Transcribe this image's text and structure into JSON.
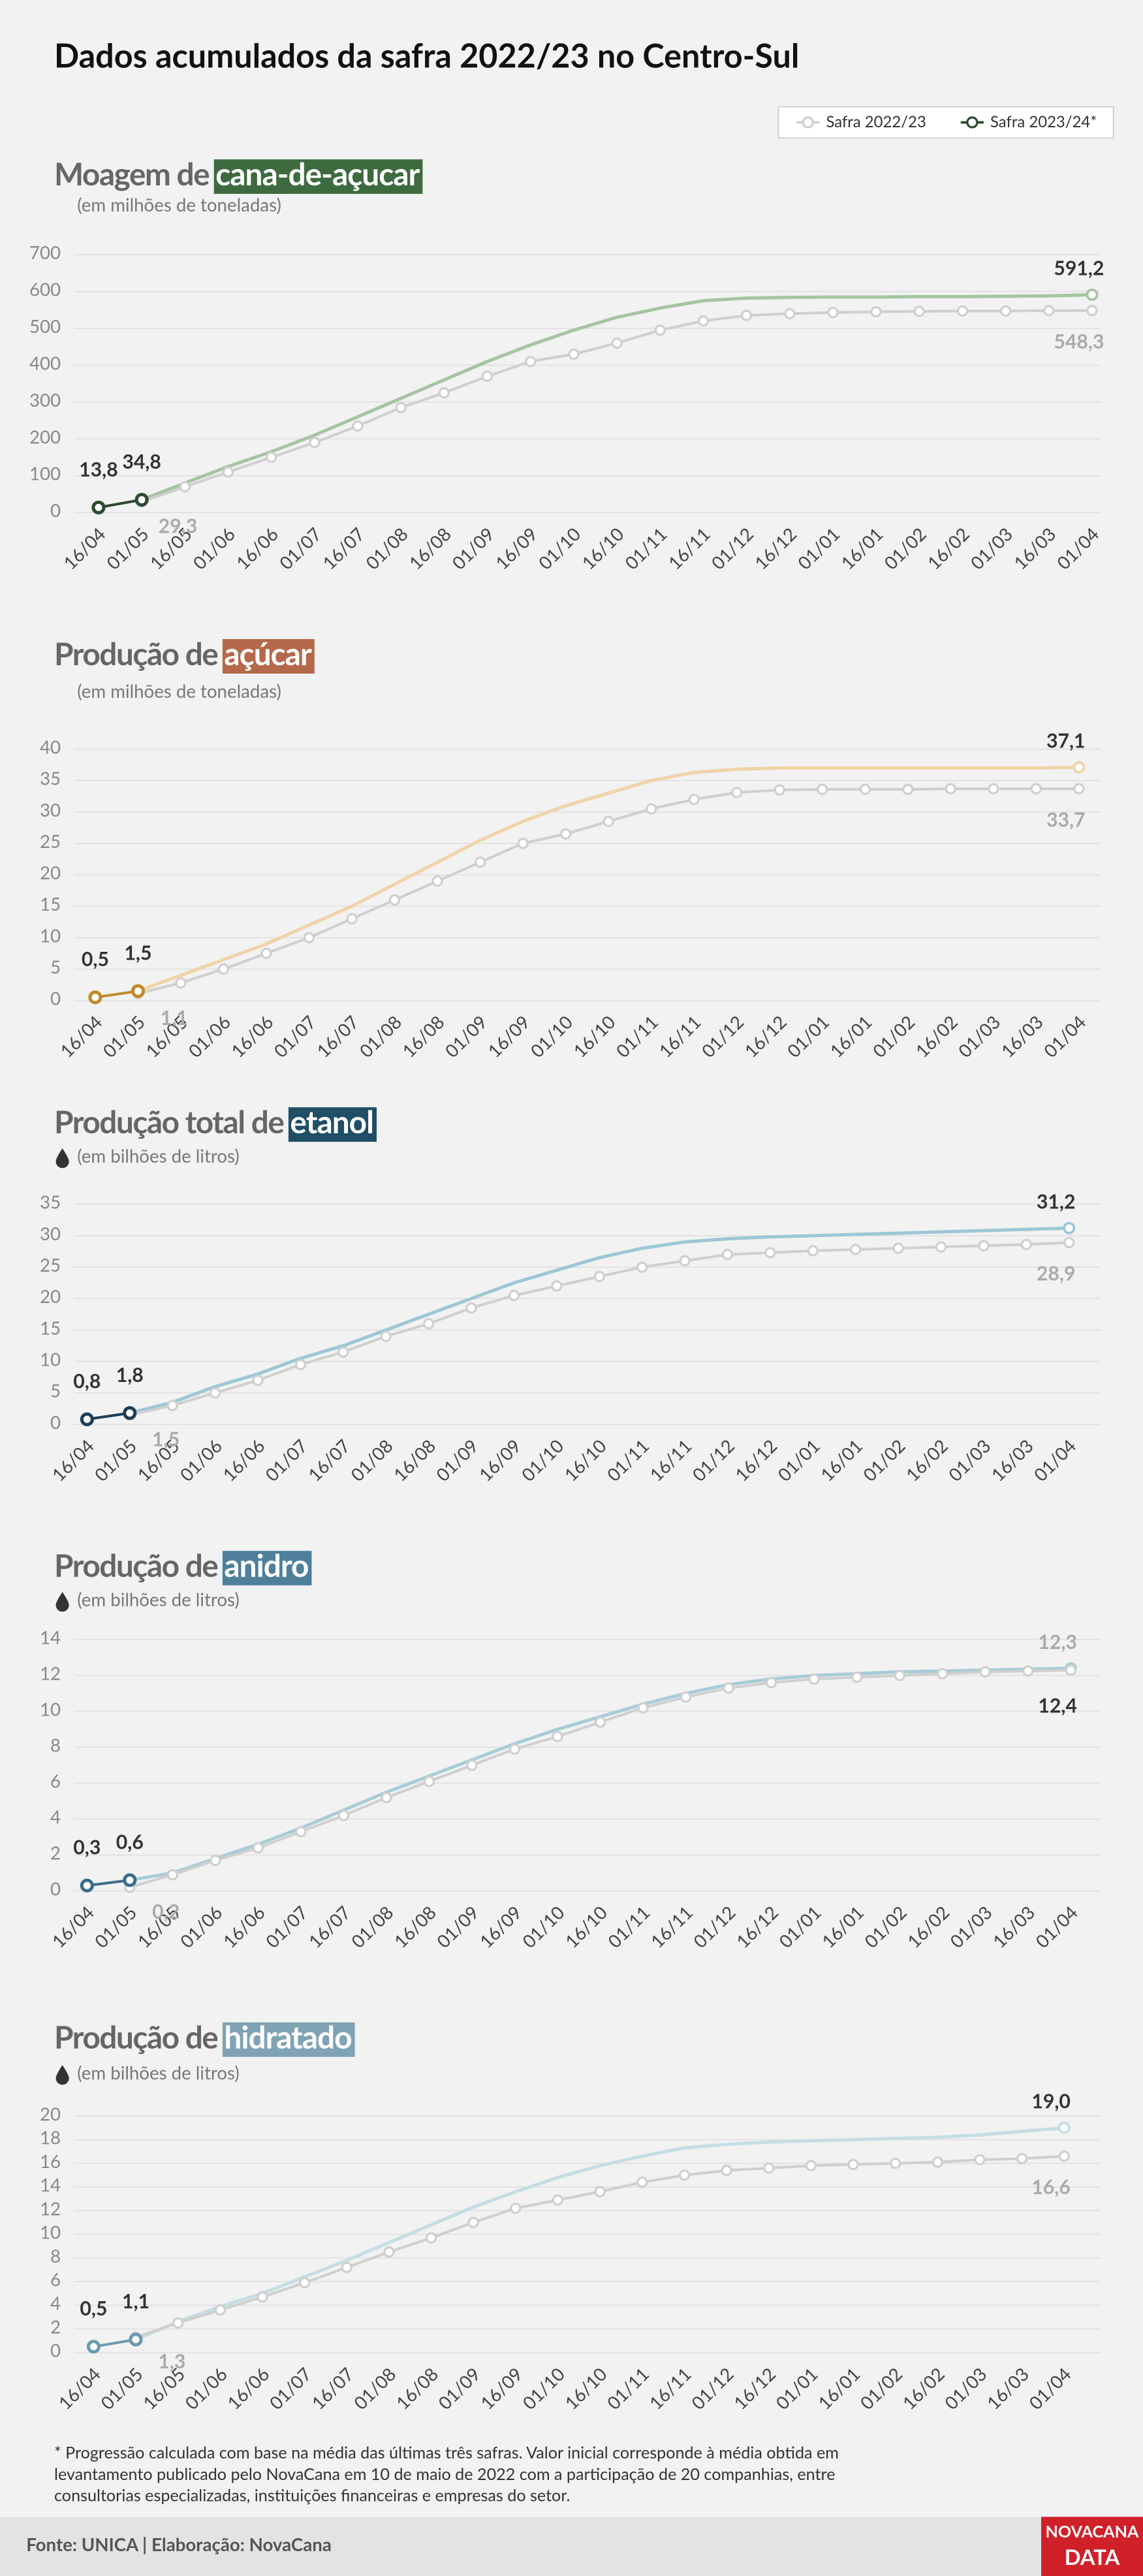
{
  "title": "Dados acumulados da safra 2022/23 no Centro-Sul",
  "legend": [
    {
      "name": "Safra 2022/23",
      "color": "#cfcfcf"
    },
    {
      "name": "Safra 2023/24*",
      "color": "#2e4a30"
    }
  ],
  "chart_data": [
    {
      "type": "line",
      "title": "Moagem de",
      "title_highlight": "cana-de-açucar",
      "highlight_color": "#3d6b3f",
      "subtitle": "(em milhões de toneladas)",
      "categories": [
        "16/04",
        "01/05",
        "16/05",
        "01/06",
        "16/06",
        "01/07",
        "16/07",
        "01/08",
        "16/08",
        "01/09",
        "16/09",
        "01/10",
        "16/10",
        "01/11",
        "16/11",
        "01/12",
        "16/12",
        "01/01",
        "16/01",
        "01/02",
        "16/02",
        "01/03",
        "16/03",
        "01/04"
      ],
      "ylim": [
        0,
        700
      ],
      "yticks": [
        0,
        100,
        200,
        300,
        400,
        500,
        600,
        700
      ],
      "series": [
        {
          "color": "#cfcfcf",
          "values": [
            null,
            29.3,
            70,
            110,
            150,
            190,
            235,
            285,
            325,
            370,
            410,
            430,
            460,
            495,
            520,
            535,
            540,
            543,
            545,
            546,
            547,
            547,
            548,
            548.3
          ],
          "value_labels": [
            null,
            "29,3",
            null,
            null,
            null,
            null,
            null,
            null,
            null,
            null,
            null,
            null,
            null,
            null,
            null,
            null,
            null,
            null,
            null,
            null,
            null,
            null,
            null,
            "548,3"
          ]
        },
        {
          "color": "#2e4a30",
          "values": [
            13.8,
            34.8,
            null,
            null,
            null,
            null,
            null,
            null,
            null,
            null,
            null,
            null,
            null,
            null,
            null,
            null,
            null,
            null,
            null,
            null,
            null,
            null,
            null,
            null
          ],
          "value_labels": [
            "13,8",
            "34,8",
            null,
            null,
            null,
            null,
            null,
            null,
            null,
            null,
            null,
            null,
            null,
            null,
            null,
            null,
            null,
            null,
            null,
            null,
            null,
            null,
            null,
            null
          ]
        },
        {
          "color": "#a6c4a2",
          "values": [
            null,
            34.8,
            80,
            125,
            165,
            210,
            260,
            310,
            360,
            410,
            455,
            495,
            530,
            555,
            575,
            582,
            584,
            585,
            585,
            586,
            586,
            587,
            588,
            591.2
          ],
          "value_labels": [
            null,
            null,
            null,
            null,
            null,
            null,
            null,
            null,
            null,
            null,
            null,
            null,
            null,
            null,
            null,
            null,
            null,
            null,
            null,
            null,
            null,
            null,
            null,
            "591,2"
          ]
        }
      ]
    },
    {
      "type": "line",
      "title": "Produção de",
      "title_highlight": "açúcar",
      "highlight_color": "#b5684a",
      "subtitle": "(em milhões de toneladas)",
      "categories": [
        "16/04",
        "01/05",
        "16/05",
        "01/06",
        "16/06",
        "01/07",
        "16/07",
        "01/08",
        "16/08",
        "01/09",
        "16/09",
        "01/10",
        "16/10",
        "01/11",
        "16/11",
        "01/12",
        "16/12",
        "01/01",
        "16/01",
        "01/02",
        "16/02",
        "01/03",
        "16/03",
        "01/04"
      ],
      "ylim": [
        0,
        40
      ],
      "yticks": [
        0,
        5,
        10,
        15,
        20,
        25,
        30,
        35,
        40
      ],
      "series": [
        {
          "color": "#cfcfcf",
          "values": [
            null,
            1.1,
            2.8,
            5,
            7.5,
            10,
            13,
            16,
            19,
            22,
            25,
            26.5,
            28.5,
            30.5,
            32,
            33.1,
            33.5,
            33.6,
            33.6,
            33.6,
            33.7,
            33.7,
            33.7,
            33.7
          ],
          "value_labels": [
            null,
            "1,1",
            null,
            null,
            null,
            null,
            null,
            null,
            null,
            null,
            null,
            null,
            null,
            null,
            null,
            null,
            null,
            null,
            null,
            null,
            null,
            null,
            null,
            "33,7"
          ]
        },
        {
          "color": "#c08a2a",
          "values": [
            0.5,
            1.5,
            null,
            null,
            null,
            null,
            null,
            null,
            null,
            null,
            null,
            null,
            null,
            null,
            null,
            null,
            null,
            null,
            null,
            null,
            null,
            null,
            null,
            null
          ],
          "value_labels": [
            "0,5",
            "1,5",
            null,
            null,
            null,
            null,
            null,
            null,
            null,
            null,
            null,
            null,
            null,
            null,
            null,
            null,
            null,
            null,
            null,
            null,
            null,
            null,
            null,
            null
          ]
        },
        {
          "color": "#f0d3a8",
          "values": [
            null,
            1.5,
            4,
            6.5,
            9,
            12,
            15,
            18.5,
            22,
            25.5,
            28.5,
            31,
            33,
            35,
            36.3,
            36.8,
            37,
            37,
            37,
            37,
            37,
            37,
            37,
            37.1
          ],
          "value_labels": [
            null,
            null,
            null,
            null,
            null,
            null,
            null,
            null,
            null,
            null,
            null,
            null,
            null,
            null,
            null,
            null,
            null,
            null,
            null,
            null,
            null,
            null,
            null,
            "37,1"
          ]
        }
      ]
    },
    {
      "type": "line",
      "title": "Produção total de",
      "title_highlight": "etanol",
      "highlight_color": "#1f4e66",
      "subtitle": "(em bilhões de litros)",
      "categories": [
        "16/04",
        "01/05",
        "16/05",
        "01/06",
        "16/06",
        "01/07",
        "16/07",
        "01/08",
        "16/08",
        "01/09",
        "16/09",
        "01/10",
        "16/10",
        "01/11",
        "16/11",
        "01/12",
        "16/12",
        "01/01",
        "16/01",
        "01/02",
        "16/02",
        "01/03",
        "16/03",
        "01/04"
      ],
      "ylim": [
        0,
        35
      ],
      "yticks": [
        0,
        5,
        10,
        15,
        20,
        25,
        30,
        35
      ],
      "series": [
        {
          "color": "#cfcfcf",
          "values": [
            null,
            1.5,
            3,
            5,
            7,
            9.5,
            11.5,
            14,
            16,
            18.5,
            20.5,
            22,
            23.5,
            25,
            26,
            27,
            27.3,
            27.6,
            27.8,
            28,
            28.2,
            28.4,
            28.6,
            28.9
          ],
          "value_labels": [
            null,
            "1,5",
            null,
            null,
            null,
            null,
            null,
            null,
            null,
            null,
            null,
            null,
            null,
            null,
            null,
            null,
            null,
            null,
            null,
            null,
            null,
            null,
            null,
            "28,9"
          ]
        },
        {
          "color": "#1e3d55",
          "values": [
            0.8,
            1.8,
            null,
            null,
            null,
            null,
            null,
            null,
            null,
            null,
            null,
            null,
            null,
            null,
            null,
            null,
            null,
            null,
            null,
            null,
            null,
            null,
            null,
            null
          ],
          "value_labels": [
            "0,8",
            "1,8",
            null,
            null,
            null,
            null,
            null,
            null,
            null,
            null,
            null,
            null,
            null,
            null,
            null,
            null,
            null,
            null,
            null,
            null,
            null,
            null,
            null,
            null
          ]
        },
        {
          "color": "#9cc7d6",
          "values": [
            null,
            1.8,
            3.5,
            6,
            8,
            10.5,
            12.5,
            15,
            17.5,
            20,
            22.5,
            24.5,
            26.5,
            28,
            29,
            29.5,
            29.8,
            30,
            30.2,
            30.4,
            30.6,
            30.8,
            31,
            31.2
          ],
          "value_labels": [
            null,
            null,
            null,
            null,
            null,
            null,
            null,
            null,
            null,
            null,
            null,
            null,
            null,
            null,
            null,
            null,
            null,
            null,
            null,
            null,
            null,
            null,
            null,
            "31,2"
          ]
        }
      ]
    },
    {
      "type": "line",
      "title": "Produção de",
      "title_highlight": "anidro",
      "highlight_color": "#4f7f9b",
      "subtitle": "(em bilhões de litros)",
      "categories": [
        "16/04",
        "01/05",
        "16/05",
        "01/06",
        "16/06",
        "01/07",
        "16/07",
        "01/08",
        "16/08",
        "01/09",
        "16/09",
        "01/10",
        "16/10",
        "01/11",
        "16/11",
        "01/12",
        "16/12",
        "01/01",
        "16/01",
        "01/02",
        "16/02",
        "01/03",
        "16/03",
        "01/04"
      ],
      "ylim": [
        0,
        14
      ],
      "yticks": [
        0,
        2,
        4,
        6,
        8,
        10,
        12,
        14
      ],
      "series": [
        {
          "color": "#cfcfcf",
          "values": [
            null,
            0.2,
            0.9,
            1.7,
            2.4,
            3.3,
            4.2,
            5.2,
            6.1,
            7.0,
            7.9,
            8.6,
            9.4,
            10.2,
            10.8,
            11.3,
            11.6,
            11.8,
            11.9,
            12.0,
            12.1,
            12.2,
            12.25,
            12.3
          ],
          "value_labels": [
            null,
            "0,2",
            null,
            null,
            null,
            null,
            null,
            null,
            null,
            null,
            null,
            null,
            null,
            null,
            null,
            null,
            null,
            null,
            null,
            null,
            null,
            null,
            null,
            "12,3"
          ]
        },
        {
          "color": "#3a6d8a",
          "values": [
            0.3,
            0.6,
            null,
            null,
            null,
            null,
            null,
            null,
            null,
            null,
            null,
            null,
            null,
            null,
            null,
            null,
            null,
            null,
            null,
            null,
            null,
            null,
            null,
            null
          ],
          "value_labels": [
            "0,3",
            "0,6",
            null,
            null,
            null,
            null,
            null,
            null,
            null,
            null,
            null,
            null,
            null,
            null,
            null,
            null,
            null,
            null,
            null,
            null,
            null,
            null,
            null,
            null
          ]
        },
        {
          "color": "#a8ccd8",
          "values": [
            null,
            0.6,
            1.0,
            1.8,
            2.6,
            3.5,
            4.5,
            5.5,
            6.4,
            7.3,
            8.2,
            9.0,
            9.7,
            10.4,
            11.0,
            11.5,
            11.8,
            12.0,
            12.1,
            12.2,
            12.25,
            12.3,
            12.35,
            12.4
          ],
          "value_labels": [
            null,
            null,
            null,
            null,
            null,
            null,
            null,
            null,
            null,
            null,
            null,
            null,
            null,
            null,
            null,
            null,
            null,
            null,
            null,
            null,
            null,
            null,
            null,
            "12,4"
          ]
        }
      ]
    },
    {
      "type": "line",
      "title": "Produção de",
      "title_highlight": "hidratado",
      "highlight_color": "#7fa3b5",
      "subtitle": "(em bilhões de litros)",
      "categories": [
        "16/04",
        "01/05",
        "16/05",
        "01/06",
        "16/06",
        "01/07",
        "16/07",
        "01/08",
        "16/08",
        "01/09",
        "16/09",
        "01/10",
        "16/10",
        "01/11",
        "16/11",
        "01/12",
        "16/12",
        "01/01",
        "16/01",
        "01/02",
        "16/02",
        "01/03",
        "16/03",
        "01/04"
      ],
      "ylim": [
        0,
        20
      ],
      "yticks": [
        0,
        2,
        4,
        6,
        8,
        10,
        12,
        14,
        16,
        18,
        20
      ],
      "series": [
        {
          "color": "#cfcfcf",
          "values": [
            null,
            1.3,
            2.5,
            3.6,
            4.7,
            5.9,
            7.2,
            8.5,
            9.7,
            11.0,
            12.2,
            12.9,
            13.6,
            14.4,
            15.0,
            15.4,
            15.6,
            15.8,
            15.9,
            16.0,
            16.1,
            16.3,
            16.4,
            16.6
          ],
          "value_labels": [
            null,
            "1,3",
            null,
            null,
            null,
            null,
            null,
            null,
            null,
            null,
            null,
            null,
            null,
            null,
            null,
            null,
            null,
            null,
            null,
            null,
            null,
            null,
            null,
            "16,6"
          ]
        },
        {
          "color": "#6a9ab0",
          "values": [
            0.5,
            1.1,
            null,
            null,
            null,
            null,
            null,
            null,
            null,
            null,
            null,
            null,
            null,
            null,
            null,
            null,
            null,
            null,
            null,
            null,
            null,
            null,
            null,
            null
          ],
          "value_labels": [
            "0,5",
            "1,1",
            null,
            null,
            null,
            null,
            null,
            null,
            null,
            null,
            null,
            null,
            null,
            null,
            null,
            null,
            null,
            null,
            null,
            null,
            null,
            null,
            null,
            null
          ]
        },
        {
          "color": "#c5dde5",
          "values": [
            null,
            1.1,
            2.6,
            3.9,
            5.0,
            6.4,
            7.8,
            9.3,
            10.8,
            12.3,
            13.6,
            14.8,
            15.8,
            16.6,
            17.3,
            17.6,
            17.8,
            17.9,
            18.0,
            18.1,
            18.2,
            18.4,
            18.7,
            19.0
          ],
          "value_labels": [
            null,
            null,
            null,
            null,
            null,
            null,
            null,
            null,
            null,
            null,
            null,
            null,
            null,
            null,
            null,
            null,
            null,
            null,
            null,
            null,
            null,
            null,
            null,
            "19,0"
          ]
        }
      ]
    }
  ],
  "footnote": [
    "* Progressão calculada com base na média das últimas três safras. Valor inicial corresponde à média obtida em",
    "levantamento publicado pelo NovaCana em 10 de maio de 2022 com a participação de 20 companhias, entre",
    "consultorias especializadas, instituições financeiras e empresas do setor."
  ],
  "footer": {
    "source": "Fonte: UNICA | Elaboração: NovaCana",
    "logo_top": "NOVACANA",
    "logo_bottom": "DATA"
  }
}
